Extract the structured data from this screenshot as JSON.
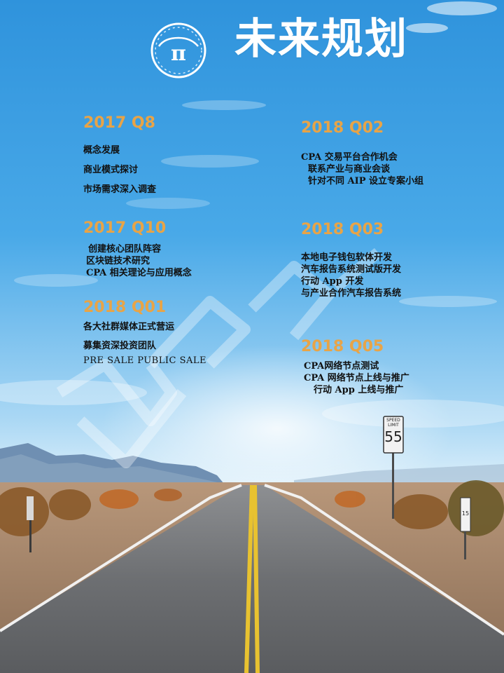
{
  "header": {
    "title": "未来规划",
    "logo_icon": "pi-car-logo-icon",
    "logo_glyph": "π"
  },
  "watermark_icon": "w-outline-watermark-icon",
  "road_sign": {
    "line1": "SPEED",
    "line2": "LIMIT",
    "value": "55",
    "post_number": "15"
  },
  "colors": {
    "heading": "#e8a447",
    "title": "#ffffff",
    "body_text": "#111111"
  },
  "milestones": [
    {
      "heading": "2017 Q8",
      "items": [
        "概念发展",
        "商业模式探讨",
        "市场需求深入调查"
      ]
    },
    {
      "heading": "2017 Q10",
      "items": [
        "创建核心团队阵容",
        "区块链技术研究",
        "CPA 相关理论与应用概念"
      ]
    },
    {
      "heading": "2018 Q01",
      "items": [
        "各大社群媒体正式营运",
        "募集资深投资团队",
        "PRE SALE PUBLIC SALE"
      ]
    },
    {
      "heading": "2018 Q02",
      "items": [
        "CPA 交易平台合作机会",
        "联系产业与商业会谈",
        "针对不同 AIP 设立专案小组"
      ]
    },
    {
      "heading": "2018 Q03",
      "items": [
        "本地电子钱包软体开发",
        "汽车报告系统测试版开发",
        "行动 App 开发",
        "与产业合作汽车报告系统"
      ]
    },
    {
      "heading": "2018 Q05",
      "items": [
        "CPA网络节点测试",
        "CPA 网络节点上线与推广",
        "行动 App 上线与推广"
      ]
    }
  ]
}
